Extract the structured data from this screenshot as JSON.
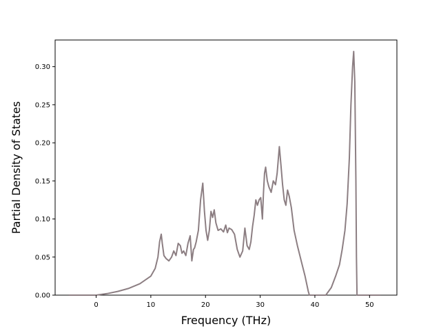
{
  "chart_data": {
    "type": "line",
    "title": "",
    "xlabel": "Frequency (THz)",
    "ylabel": "Partial Density of States",
    "xlim": [
      -7.5,
      55
    ],
    "ylim": [
      0,
      0.335
    ],
    "xticks": [
      0,
      10,
      20,
      30,
      40,
      50
    ],
    "xtick_labels": [
      "0",
      "10",
      "20",
      "30",
      "40",
      "50"
    ],
    "yticks": [
      0.0,
      0.05,
      0.1,
      0.15,
      0.2,
      0.25,
      0.3
    ],
    "ytick_labels": [
      "0.00",
      "0.05",
      "0.10",
      "0.15",
      "0.20",
      "0.25",
      "0.30"
    ],
    "grid": false,
    "legend": "none",
    "colors": {
      "series": "#8c7e82",
      "axes": "#000000",
      "background": "#ffffff"
    },
    "series": [
      {
        "name": "",
        "x": [
          -5,
          -2,
          0,
          2,
          4,
          6,
          8,
          10,
          10.8,
          11.3,
          11.6,
          11.9,
          12.1,
          12.4,
          12.8,
          13.3,
          13.8,
          14.2,
          14.6,
          15.0,
          15.4,
          15.7,
          16.0,
          16.4,
          16.8,
          17.2,
          17.5,
          17.8,
          18.0,
          18.3,
          18.7,
          19.1,
          19.5,
          19.8,
          20.1,
          20.4,
          20.7,
          21.0,
          21.3,
          21.6,
          21.9,
          22.3,
          22.8,
          23.3,
          23.7,
          24.0,
          24.3,
          24.8,
          25.3,
          25.8,
          26.3,
          26.8,
          27.2,
          27.6,
          28.0,
          28.3,
          28.6,
          28.9,
          29.2,
          29.5,
          29.8,
          30.1,
          30.4,
          30.6,
          30.8,
          31.0,
          31.3,
          31.6,
          32.0,
          32.4,
          32.8,
          33.1,
          33.5,
          33.8,
          34.1,
          34.4,
          34.7,
          35.0,
          35.3,
          35.7,
          36.2,
          36.8,
          37.5,
          38.2,
          38.8,
          39.0,
          40,
          41,
          42,
          43,
          43.8,
          44.5,
          45.0,
          45.5,
          45.9,
          46.3,
          46.6,
          46.9,
          47.1,
          47.3,
          47.5,
          47.6,
          47.7,
          48,
          50,
          52
        ],
        "y": [
          0.0,
          0.0,
          0.0,
          0.002,
          0.005,
          0.009,
          0.015,
          0.025,
          0.035,
          0.05,
          0.07,
          0.08,
          0.068,
          0.052,
          0.048,
          0.045,
          0.05,
          0.058,
          0.052,
          0.068,
          0.065,
          0.055,
          0.058,
          0.052,
          0.068,
          0.078,
          0.045,
          0.06,
          0.062,
          0.07,
          0.085,
          0.125,
          0.147,
          0.11,
          0.085,
          0.072,
          0.085,
          0.11,
          0.102,
          0.112,
          0.095,
          0.085,
          0.087,
          0.083,
          0.092,
          0.082,
          0.088,
          0.086,
          0.08,
          0.06,
          0.05,
          0.058,
          0.088,
          0.065,
          0.06,
          0.07,
          0.09,
          0.105,
          0.125,
          0.118,
          0.125,
          0.128,
          0.1,
          0.135,
          0.16,
          0.168,
          0.15,
          0.142,
          0.135,
          0.15,
          0.145,
          0.16,
          0.195,
          0.17,
          0.145,
          0.125,
          0.118,
          0.138,
          0.13,
          0.115,
          0.085,
          0.065,
          0.045,
          0.025,
          0.005,
          0.0,
          0.0,
          0.0,
          0.0,
          0.01,
          0.025,
          0.04,
          0.06,
          0.085,
          0.12,
          0.18,
          0.25,
          0.3,
          0.32,
          0.28,
          0.15,
          0.05,
          0.0,
          0.0,
          0.0,
          0.0
        ]
      }
    ]
  }
}
